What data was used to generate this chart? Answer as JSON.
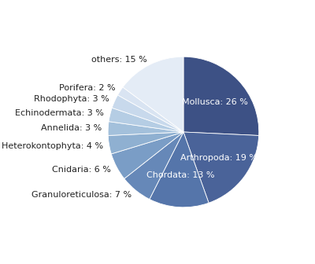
{
  "labels": [
    "Mollusca",
    "Arthropoda",
    "Chordata",
    "Granuloreticulosa",
    "Cnidaria",
    "Heterokontophyta",
    "Annelida",
    "Echinodermata",
    "Rhodophyta",
    "Porifera",
    "others"
  ],
  "values": [
    26,
    19,
    13,
    7,
    6,
    4,
    3,
    3,
    3,
    2,
    15
  ],
  "colors": [
    "#3d5185",
    "#4a6399",
    "#5575aa",
    "#6688b8",
    "#7a9dc6",
    "#8fb0d1",
    "#a3c0db",
    "#b5cde4",
    "#c8d9ec",
    "#d9e4f2",
    "#e4ecf6"
  ],
  "startangle": 90,
  "figsize": [
    4.0,
    3.36
  ],
  "dpi": 100,
  "inside_labels": [
    "Mollusca",
    "Arthropoda",
    "Chordata"
  ],
  "label_fontsize": 8.0,
  "inside_label_color": "white",
  "outside_label_color": "#222222"
}
